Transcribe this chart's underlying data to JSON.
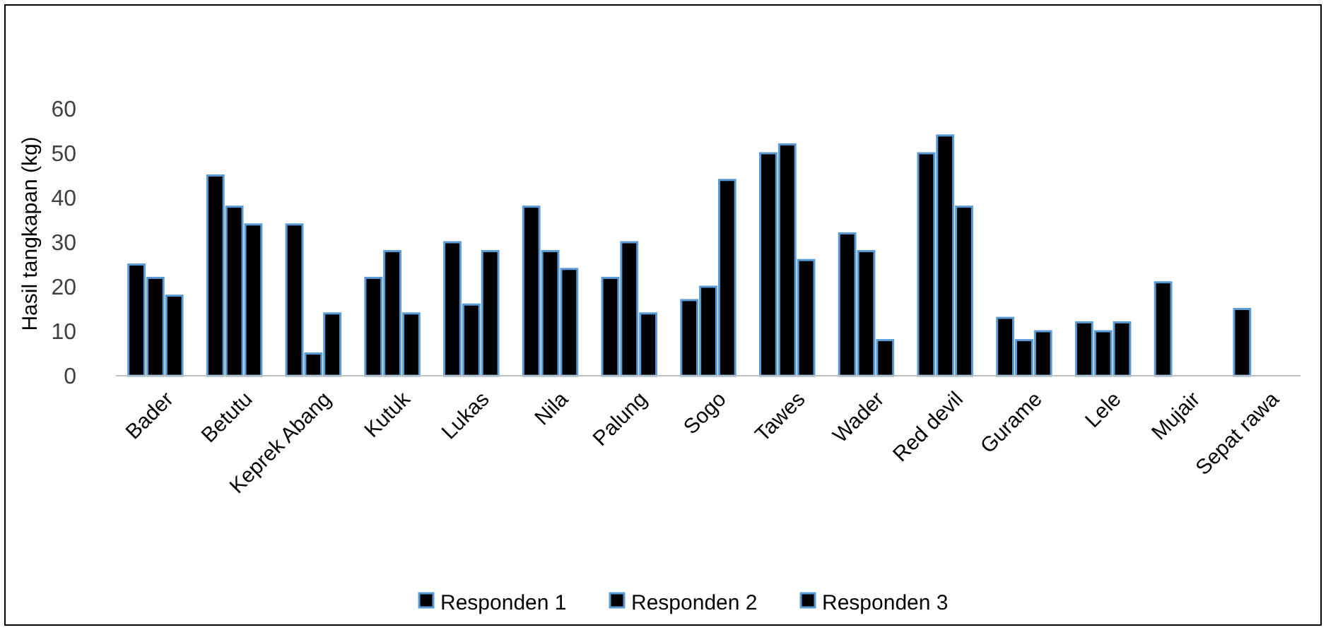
{
  "chart_data": {
    "type": "bar",
    "ylabel": "Hasil tangkapan (kg)",
    "categories": [
      "Bader",
      "Betutu",
      "Keprek Abang",
      "Kutuk",
      "Lukas",
      "Nila",
      "Palung",
      "Sogo",
      "Tawes",
      "Wader",
      "Red devil",
      "Gurame",
      "Lele",
      "Mujair",
      "Sepat rawa"
    ],
    "series": [
      {
        "name": "Responden 1",
        "color": "#000000",
        "values": [
          25,
          45,
          34,
          22,
          30,
          38,
          22,
          17,
          50,
          32,
          50,
          13,
          12,
          21,
          15
        ]
      },
      {
        "name": "Responden 2",
        "color": "#000000",
        "values": [
          22,
          38,
          5,
          28,
          16,
          28,
          30,
          20,
          52,
          28,
          54,
          8,
          10,
          null,
          null
        ]
      },
      {
        "name": "Responden 3",
        "color": "#000000",
        "values": [
          18,
          34,
          14,
          14,
          28,
          24,
          14,
          44,
          26,
          8,
          38,
          10,
          12,
          null,
          null
        ]
      }
    ],
    "ylim": [
      0,
      60
    ],
    "yticks": [
      0,
      10,
      20,
      30,
      40,
      50,
      60
    ],
    "grid": false,
    "legend": "bottom"
  }
}
